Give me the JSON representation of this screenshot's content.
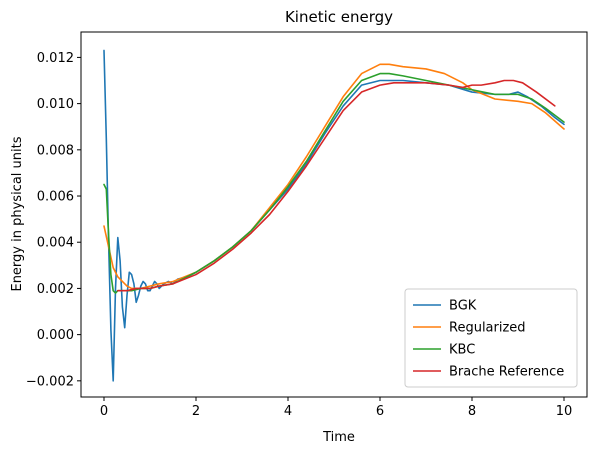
{
  "chart_data": {
    "type": "line",
    "title": "Kinetic energy",
    "xlabel": "Time",
    "ylabel": "Energy in physical units",
    "xlim": [
      -0.5,
      10.5
    ],
    "ylim": [
      -0.0027,
      0.0131
    ],
    "x_ticks": [
      0,
      2,
      4,
      6,
      8,
      10
    ],
    "x_tick_labels": [
      "0",
      "2",
      "4",
      "6",
      "8",
      "10"
    ],
    "y_ticks": [
      -0.002,
      0.0,
      0.002,
      0.004,
      0.006,
      0.008,
      0.01,
      0.012
    ],
    "y_tick_labels": [
      "−0.002",
      "0.000",
      "0.002",
      "0.004",
      "0.006",
      "0.008",
      "0.010",
      "0.012"
    ],
    "grid": false,
    "legend_position": "lower-right",
    "series": [
      {
        "name": "BGK",
        "color": "#1f77b4",
        "x": [
          0.0,
          0.05,
          0.1,
          0.15,
          0.2,
          0.25,
          0.3,
          0.35,
          0.4,
          0.45,
          0.5,
          0.55,
          0.6,
          0.65,
          0.7,
          0.75,
          0.8,
          0.85,
          0.9,
          0.95,
          1.0,
          1.05,
          1.1,
          1.15,
          1.2,
          1.3,
          1.4,
          1.5,
          1.6,
          1.8,
          2.0,
          2.4,
          2.8,
          3.2,
          3.6,
          4.0,
          4.4,
          4.8,
          5.2,
          5.6,
          6.0,
          6.2,
          6.5,
          7.0,
          7.5,
          8.0,
          8.5,
          8.8,
          9.0,
          9.2,
          9.5,
          9.8,
          10.0
        ],
        "y": [
          0.0123,
          0.0085,
          0.004,
          0.0002,
          -0.002,
          0.002,
          0.0042,
          0.0032,
          0.0012,
          0.0003,
          0.0017,
          0.0027,
          0.0026,
          0.0022,
          0.0014,
          0.0017,
          0.0021,
          0.0023,
          0.0022,
          0.0019,
          0.0019,
          0.0021,
          0.0023,
          0.0022,
          0.002,
          0.0022,
          0.0023,
          0.0022,
          0.0024,
          0.0025,
          0.0027,
          0.0032,
          0.0038,
          0.0045,
          0.0054,
          0.0063,
          0.0074,
          0.0087,
          0.0099,
          0.0108,
          0.011,
          0.011,
          0.011,
          0.0109,
          0.0108,
          0.0105,
          0.0104,
          0.0104,
          0.0105,
          0.0103,
          0.0099,
          0.0094,
          0.0091
        ]
      },
      {
        "name": "Regularized",
        "color": "#ff7f0e",
        "x": [
          0.0,
          0.1,
          0.2,
          0.3,
          0.4,
          0.5,
          0.6,
          0.7,
          0.8,
          1.0,
          1.2,
          1.5,
          2.0,
          2.4,
          2.8,
          3.2,
          3.6,
          4.0,
          4.4,
          4.8,
          5.2,
          5.6,
          6.0,
          6.2,
          6.5,
          7.0,
          7.4,
          7.8,
          8.0,
          8.5,
          9.0,
          9.3,
          9.6,
          10.0
        ],
        "y": [
          0.0047,
          0.0038,
          0.0029,
          0.0025,
          0.0023,
          0.0021,
          0.002,
          0.002,
          0.002,
          0.0021,
          0.0022,
          0.0023,
          0.0027,
          0.0032,
          0.0038,
          0.0045,
          0.0055,
          0.0065,
          0.0077,
          0.009,
          0.0103,
          0.0113,
          0.0117,
          0.0117,
          0.0116,
          0.0115,
          0.0113,
          0.0109,
          0.0106,
          0.0102,
          0.0101,
          0.01,
          0.0096,
          0.0089
        ]
      },
      {
        "name": "KBC",
        "color": "#2ca02c",
        "x": [
          0.0,
          0.05,
          0.1,
          0.15,
          0.2,
          0.25,
          0.3,
          0.4,
          0.5,
          0.6,
          0.8,
          1.0,
          1.2,
          1.5,
          2.0,
          2.4,
          2.8,
          3.2,
          3.6,
          4.0,
          4.4,
          4.8,
          5.2,
          5.6,
          6.0,
          6.2,
          6.5,
          7.0,
          7.5,
          8.0,
          8.5,
          9.0,
          9.3,
          9.6,
          10.0
        ],
        "y": [
          0.0065,
          0.0063,
          0.0043,
          0.0026,
          0.0019,
          0.0018,
          0.0019,
          0.0019,
          0.0019,
          0.0019,
          0.002,
          0.002,
          0.0021,
          0.0022,
          0.0027,
          0.0032,
          0.0038,
          0.0045,
          0.0054,
          0.0064,
          0.0075,
          0.0088,
          0.0101,
          0.011,
          0.0113,
          0.0113,
          0.0112,
          0.011,
          0.0108,
          0.0106,
          0.0104,
          0.0104,
          0.0102,
          0.0098,
          0.0092
        ]
      },
      {
        "name": "Brache Reference",
        "color": "#d62728",
        "x": [
          0.3,
          0.5,
          0.7,
          1.0,
          1.2,
          1.5,
          2.0,
          2.4,
          2.8,
          3.2,
          3.6,
          4.0,
          4.4,
          4.8,
          5.2,
          5.6,
          6.0,
          6.3,
          6.6,
          7.0,
          7.5,
          7.8,
          8.0,
          8.2,
          8.5,
          8.7,
          8.9,
          9.1,
          9.4,
          9.8
        ],
        "y": [
          0.0019,
          0.0019,
          0.002,
          0.002,
          0.0021,
          0.0022,
          0.0026,
          0.0031,
          0.0037,
          0.0044,
          0.0052,
          0.0062,
          0.0073,
          0.0085,
          0.0097,
          0.0105,
          0.0108,
          0.0109,
          0.0109,
          0.0109,
          0.0108,
          0.0107,
          0.0108,
          0.0108,
          0.0109,
          0.011,
          0.011,
          0.0109,
          0.0105,
          0.0099
        ]
      }
    ]
  }
}
